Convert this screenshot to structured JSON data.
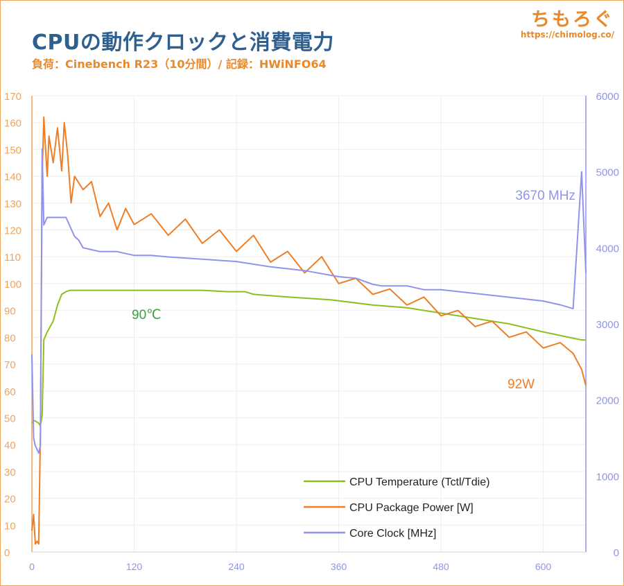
{
  "header": {
    "title": "CPUの動作クロックと消費電力",
    "subtitle": "負荷：Cinebench R23（10分間）/ 記録：HWiNFO64"
  },
  "logo": {
    "name": "ちもろぐ",
    "url": "https://chimolog.co/"
  },
  "colors": {
    "temperature": "#8dbe1e",
    "power": "#ee7d25",
    "clock": "#8f93ee",
    "axis_left": "#f0a35a",
    "axis_right": "#8f93ee",
    "grid": "#eeeeee"
  },
  "chart_data": {
    "type": "line",
    "title": "CPUの動作クロックと消費電力",
    "subtitle": "負荷：Cinebench R23（10分間）/ 記録：HWiNFO64",
    "grid": true,
    "legend_position": "bottom-right",
    "x_axis": {
      "range": [
        0,
        650
      ],
      "ticks": [
        0,
        120,
        240,
        360,
        480,
        600
      ]
    },
    "y_axis_left": {
      "range": [
        0,
        170
      ],
      "ticks": [
        0,
        10,
        20,
        30,
        40,
        50,
        60,
        70,
        80,
        90,
        100,
        110,
        120,
        130,
        140,
        150,
        160,
        170
      ]
    },
    "y_axis_right": {
      "range": [
        0,
        6000
      ],
      "ticks": [
        0,
        1000,
        2000,
        3000,
        4000,
        5000,
        6000
      ]
    },
    "series": [
      {
        "name": "CPU Temperature (Tctl/Tdie)",
        "axis": "left",
        "color": "#8dbe1e",
        "x": [
          0,
          3,
          8,
          10,
          12,
          14,
          18,
          25,
          30,
          35,
          40,
          45,
          60,
          100,
          150,
          200,
          230,
          250,
          260,
          300,
          350,
          400,
          440,
          480,
          520,
          560,
          600,
          630,
          645,
          650
        ],
        "y": [
          48,
          49,
          48,
          47,
          51,
          79,
          82,
          86,
          92,
          96,
          97,
          97.5,
          97.5,
          97.5,
          97.5,
          97.5,
          97,
          97,
          96,
          95,
          94,
          92,
          91,
          89,
          87,
          85,
          82,
          80,
          79,
          79
        ]
      },
      {
        "name": "CPU Package Power [W]",
        "axis": "left",
        "color": "#ee7d25",
        "x": [
          0,
          2,
          4,
          6,
          8,
          10,
          12,
          14,
          16,
          18,
          20,
          25,
          30,
          35,
          38,
          42,
          46,
          50,
          60,
          70,
          80,
          90,
          100,
          110,
          120,
          140,
          160,
          180,
          200,
          220,
          240,
          260,
          280,
          300,
          320,
          340,
          360,
          380,
          400,
          420,
          440,
          460,
          480,
          500,
          520,
          540,
          560,
          580,
          600,
          620,
          635,
          645,
          650
        ],
        "y": [
          8,
          14,
          3,
          4,
          3,
          45,
          140,
          162,
          150,
          140,
          155,
          145,
          158,
          142,
          160,
          148,
          130,
          140,
          135,
          138,
          125,
          130,
          120,
          128,
          122,
          126,
          118,
          124,
          115,
          120,
          112,
          118,
          108,
          112,
          104,
          110,
          100,
          102,
          96,
          98,
          92,
          95,
          88,
          90,
          84,
          86,
          80,
          82,
          76,
          78,
          74,
          68,
          62
        ]
      },
      {
        "name": "Core Clock [MHz]",
        "axis": "right",
        "color": "#8f93ee",
        "x": [
          0,
          2,
          4,
          6,
          8,
          10,
          12,
          14,
          18,
          25,
          40,
          50,
          55,
          60,
          80,
          100,
          120,
          140,
          160,
          200,
          240,
          280,
          320,
          360,
          380,
          400,
          410,
          420,
          440,
          460,
          480,
          520,
          560,
          600,
          620,
          635,
          645,
          650
        ],
        "y": [
          2600,
          1500,
          1400,
          1350,
          1300,
          1400,
          5300,
          4300,
          4400,
          4400,
          4400,
          4150,
          4100,
          4000,
          3950,
          3950,
          3900,
          3900,
          3880,
          3850,
          3820,
          3750,
          3700,
          3620,
          3600,
          3520,
          3500,
          3500,
          3500,
          3450,
          3450,
          3400,
          3350,
          3300,
          3250,
          3200,
          5000,
          3670
        ]
      }
    ],
    "annotations": [
      {
        "text": "90℃",
        "series": "CPU Temperature (Tctl/Tdie)",
        "color": "#3f9d3f"
      },
      {
        "text": "92W",
        "series": "CPU Package Power [W]",
        "color": "#ee7d25"
      },
      {
        "text": "3670 MHz",
        "series": "Core Clock [MHz]",
        "color": "#8f93ee"
      }
    ]
  }
}
